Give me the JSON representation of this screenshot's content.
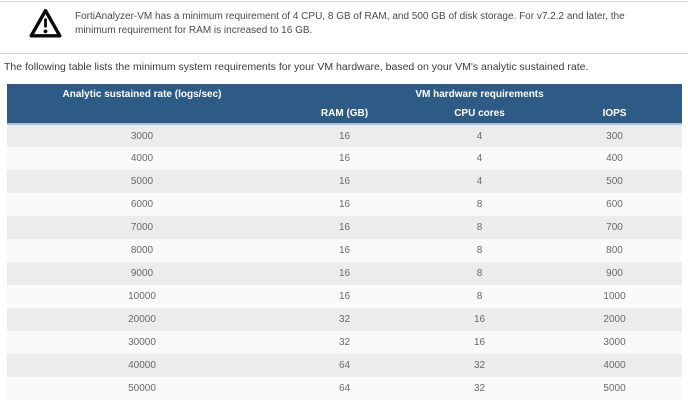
{
  "warning": {
    "icon": "warning-triangle-icon",
    "text": "FortiAnalyzer-VM has a minimum requirement of 4 CPU, 8 GB of RAM, and 500 GB of disk storage. For v7.2.2 and later, the minimum requirement for RAM is increased to 16 GB."
  },
  "intro": "The following table lists the minimum system requirements for your VM hardware, based on your VM's analytic sustained rate.",
  "table": {
    "header": {
      "rate_column": "Analytic sustained rate (logs/sec)",
      "group": "VM hardware requirements",
      "sub": [
        "RAM (GB)",
        "CPU cores",
        "IOPS"
      ]
    },
    "columns": [
      "rate",
      "ram",
      "cpu",
      "iops"
    ],
    "rows": [
      {
        "rate": "3000",
        "ram": "16",
        "cpu": "4",
        "iops": "300"
      },
      {
        "rate": "4000",
        "ram": "16",
        "cpu": "4",
        "iops": "400"
      },
      {
        "rate": "5000",
        "ram": "16",
        "cpu": "4",
        "iops": "500"
      },
      {
        "rate": "6000",
        "ram": "16",
        "cpu": "8",
        "iops": "600"
      },
      {
        "rate": "7000",
        "ram": "16",
        "cpu": "8",
        "iops": "700"
      },
      {
        "rate": "8000",
        "ram": "16",
        "cpu": "8",
        "iops": "800"
      },
      {
        "rate": "9000",
        "ram": "16",
        "cpu": "8",
        "iops": "900"
      },
      {
        "rate": "10000",
        "ram": "16",
        "cpu": "8",
        "iops": "1000"
      },
      {
        "rate": "20000",
        "ram": "32",
        "cpu": "16",
        "iops": "2000"
      },
      {
        "rate": "30000",
        "ram": "32",
        "cpu": "16",
        "iops": "3000"
      },
      {
        "rate": "40000",
        "ram": "64",
        "cpu": "32",
        "iops": "4000"
      },
      {
        "rate": "50000",
        "ram": "64",
        "cpu": "32",
        "iops": "5000"
      }
    ]
  },
  "colors": {
    "table_header_bg": "#2e5b85",
    "table_header_text": "#ffffff",
    "table_header_bottom_border": "#a6c3d8",
    "row_odd_bg": "#ececec",
    "row_even_bg": "#fafafa",
    "divider": "#d8d8d8",
    "body_text": "#4a4a4a",
    "cell_text": "#696969"
  }
}
